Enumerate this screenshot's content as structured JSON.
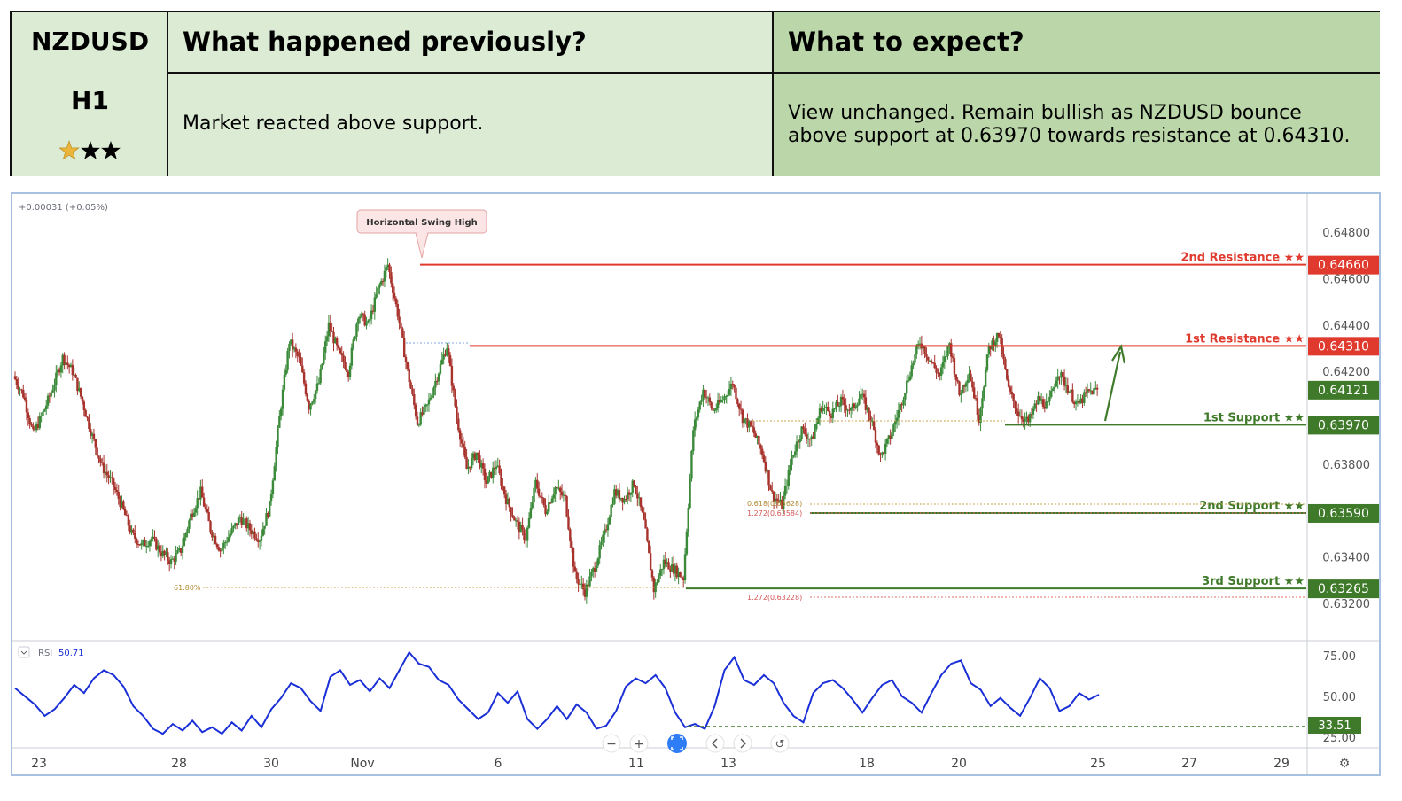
{
  "header": {
    "symbol": "NZDUSD",
    "timeframe": "H1",
    "stars": {
      "filled_gold": 1,
      "filled_black": 2
    },
    "prev_title": "What happened previously?",
    "prev_body": "Market reacted above support.",
    "exp_title": "What to expect?",
    "exp_body_1": "View unchanged. Remain bullish as NZDUSD bounce",
    "exp_body_2": "above support at 0.63970 towards resistance at 0.64310."
  },
  "colors": {
    "resistance": "#e03a2f",
    "support": "#3f7a2a",
    "rsi": "#1a2fd6",
    "fib": "#c8a34a",
    "fib_ext": "#e26b6b"
  },
  "chart_data": [
    {
      "type": "candlestick",
      "change_label": "+0.00031 (+0.05%)",
      "callout": "Horizontal Swing High",
      "ylim": [
        0.6317,
        0.6488
      ],
      "y_ticks": [
        "0.64800",
        "0.64600",
        "0.64400",
        "0.64200",
        "0.63800",
        "0.63400",
        "0.63200"
      ],
      "x_ticks": [
        "23",
        "28",
        "30",
        "Nov",
        "6",
        "11",
        "13",
        "18",
        "20",
        "25",
        "27",
        "29"
      ],
      "levels": [
        {
          "label": "2nd Resistance ★★",
          "value": "0.64660",
          "kind": "resistance"
        },
        {
          "label": "1st Resistance ★★",
          "value": "0.64310",
          "kind": "resistance"
        },
        {
          "label": "",
          "value": "0.64121",
          "kind": "current"
        },
        {
          "label": "1st Support ★★",
          "value": "0.63970",
          "kind": "support"
        },
        {
          "label": "2nd Support ★★",
          "value": "0.63590",
          "kind": "support"
        },
        {
          "label": "3rd Support ★★",
          "value": "0.63265",
          "kind": "support"
        }
      ],
      "fib_labels": [
        "0.618(0.63628)",
        "1.272(0.63584)",
        "1.272(0.63228)",
        "61.80%"
      ],
      "price_path": [
        0.6418,
        0.641,
        0.6393,
        0.6402,
        0.6413,
        0.6426,
        0.642,
        0.6407,
        0.6392,
        0.6379,
        0.6372,
        0.6362,
        0.635,
        0.6345,
        0.6348,
        0.6342,
        0.6338,
        0.6343,
        0.6358,
        0.6368,
        0.6352,
        0.6343,
        0.635,
        0.6357,
        0.6352,
        0.6348,
        0.6362,
        0.64,
        0.6433,
        0.6425,
        0.6405,
        0.6415,
        0.644,
        0.6428,
        0.642,
        0.6445,
        0.644,
        0.6455,
        0.6466,
        0.6445,
        0.642,
        0.6398,
        0.6405,
        0.6418,
        0.6431,
        0.64,
        0.6378,
        0.6385,
        0.6372,
        0.638,
        0.6365,
        0.6355,
        0.6348,
        0.6372,
        0.636,
        0.637,
        0.6365,
        0.6332,
        0.6325,
        0.6336,
        0.635,
        0.6368,
        0.6365,
        0.6372,
        0.6355,
        0.6326,
        0.6338,
        0.6335,
        0.6331,
        0.6395,
        0.6412,
        0.6403,
        0.6408,
        0.6415,
        0.64,
        0.6395,
        0.6385,
        0.6367,
        0.6362,
        0.6383,
        0.6395,
        0.639,
        0.6405,
        0.6402,
        0.6407,
        0.6403,
        0.641,
        0.64,
        0.6383,
        0.6392,
        0.6405,
        0.642,
        0.6433,
        0.6425,
        0.6418,
        0.6432,
        0.641,
        0.642,
        0.64,
        0.643,
        0.6436,
        0.6412,
        0.6402,
        0.6398,
        0.6408,
        0.6405,
        0.642,
        0.6413,
        0.6405,
        0.6411,
        0.6412
      ]
    },
    {
      "type": "line",
      "indicator": "RSI",
      "value_label": "50.71",
      "ylim": [
        20,
        82
      ],
      "y_ticks": [
        "75.00",
        "50.00",
        "25.00"
      ],
      "marker": "33.51",
      "values": [
        55,
        50,
        45,
        38,
        42,
        49,
        57,
        52,
        61,
        66,
        63,
        56,
        44,
        38,
        30,
        27,
        33,
        29,
        35,
        28,
        31,
        27,
        34,
        29,
        38,
        31,
        42,
        49,
        58,
        55,
        47,
        41,
        62,
        66,
        57,
        60,
        53,
        61,
        55,
        66,
        77,
        70,
        68,
        60,
        57,
        48,
        42,
        36,
        40,
        52,
        46,
        53,
        36,
        30,
        36,
        44,
        36,
        45,
        40,
        30,
        32,
        41,
        56,
        61,
        58,
        63,
        55,
        40,
        31,
        33,
        30,
        44,
        66,
        74,
        60,
        57,
        63,
        58,
        46,
        38,
        34,
        52,
        58,
        60,
        55,
        48,
        40,
        49,
        57,
        60,
        50,
        46,
        40,
        52,
        63,
        70,
        72,
        58,
        54,
        44,
        49,
        43,
        38,
        49,
        61,
        55,
        41,
        44,
        52,
        48,
        51
      ]
    }
  ]
}
